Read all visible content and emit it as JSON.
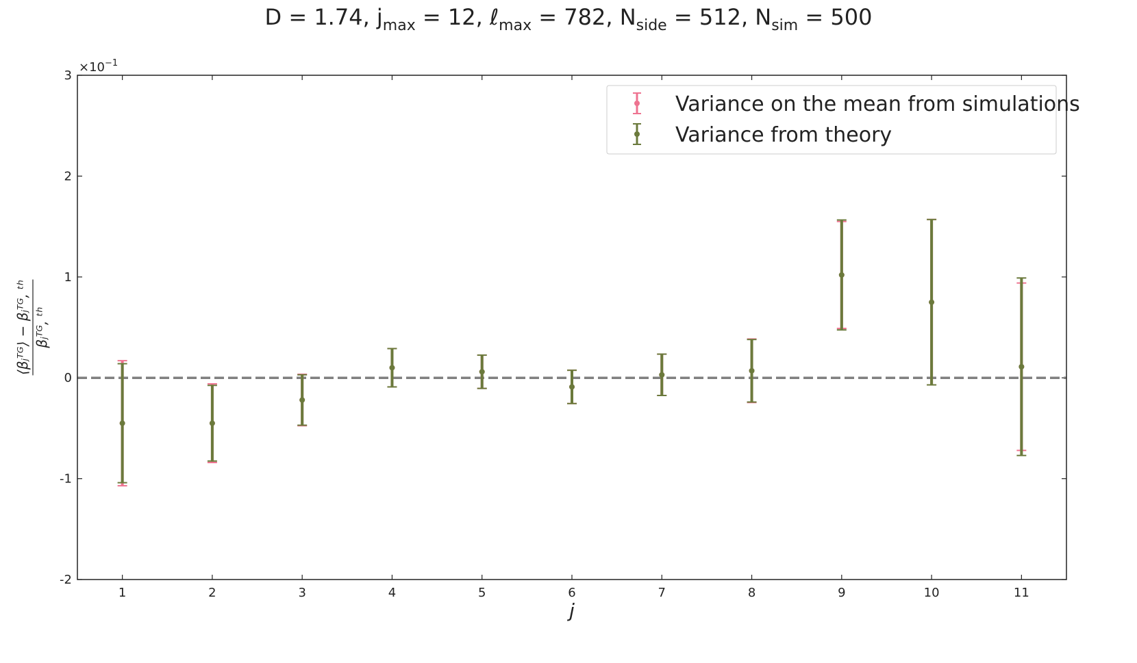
{
  "chart_data": {
    "type": "errorbar",
    "title": [
      "D = 1.74,  j",
      "max",
      " = 12,  ℓ",
      "max",
      " = 782,  N",
      "side",
      " = 512, N",
      "sim",
      " = 500"
    ],
    "xlabel": "j",
    "ylabel_numerator": "⟨βⱼᵀᴳ⟩ − βⱼᵀᴳ, ᵗʰ",
    "ylabel_denominator": "βⱼᵀᴳ, ᵗʰ",
    "y_offset_label": [
      "×10",
      "−1"
    ],
    "x": [
      1,
      2,
      3,
      4,
      5,
      6,
      7,
      8,
      9,
      10,
      11
    ],
    "xlim": [
      0.5,
      11.5
    ],
    "xticks": [
      1,
      2,
      3,
      4,
      5,
      6,
      7,
      8,
      9,
      10,
      11
    ],
    "ylim": [
      -2,
      3
    ],
    "yticks": [
      -2,
      -1,
      0,
      1,
      2,
      3
    ],
    "hline": 0,
    "hline_color": "#808080",
    "legend": "upper right",
    "series": [
      {
        "name": "Variance on the mean from simulations",
        "color": "#ee7390",
        "values": [
          -0.45,
          -0.45,
          -0.22,
          0.1,
          0.06,
          -0.09,
          0.03,
          0.07,
          1.02,
          0.75,
          0.11
        ],
        "errors": [
          0.62,
          0.39,
          0.255,
          0.19,
          0.165,
          0.165,
          0.205,
          0.315,
          0.53,
          0.82,
          0.83
        ]
      },
      {
        "name": "Variance from theory",
        "color": "#6b7a3c",
        "values": [
          -0.45,
          -0.45,
          -0.22,
          0.1,
          0.06,
          -0.09,
          0.03,
          0.07,
          1.02,
          0.75,
          0.11
        ],
        "errors": [
          0.59,
          0.375,
          0.25,
          0.19,
          0.165,
          0.165,
          0.205,
          0.31,
          0.545,
          0.82,
          0.88
        ]
      }
    ]
  }
}
